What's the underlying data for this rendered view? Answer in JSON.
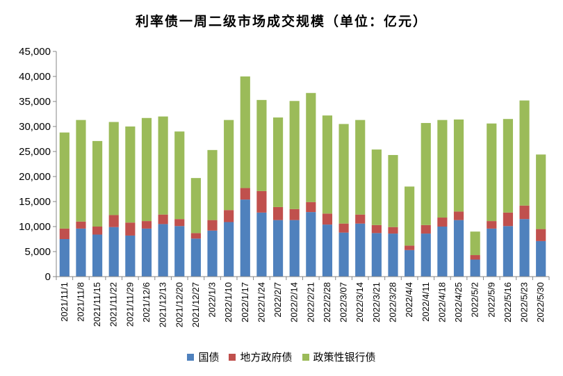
{
  "chart_data": {
    "type": "bar",
    "stacked": true,
    "title": "利率债一周二级市场成交规模（单位：亿元）",
    "categories": [
      "2021/11/1",
      "2021/11/8",
      "2021/11/15",
      "2021/11/22",
      "2021/11/29",
      "2021/12/6",
      "2021/12/13",
      "2021/12/20",
      "2021/12/27",
      "2022/1/3",
      "2022/1/10",
      "2022/1/17",
      "2022/1/24",
      "2022/2/7",
      "2022/2/14",
      "2022/2/21",
      "2022/2/28",
      "2022/3/07",
      "2022/3/14",
      "2022/3/21",
      "2022/3/28",
      "2022/4/4",
      "2022/4/11",
      "2022/4/18",
      "2022/4/25",
      "2022/5/2",
      "2022/5/9",
      "2022/5/16",
      "2022/5/23",
      "2022/5/30"
    ],
    "series": [
      {
        "name": "国债",
        "color": "#4f81bd",
        "values": [
          7500,
          9600,
          8400,
          9900,
          8200,
          9600,
          10500,
          10100,
          7600,
          9200,
          10900,
          15400,
          12800,
          11300,
          11300,
          12900,
          10400,
          8800,
          10600,
          8700,
          8600,
          5300,
          8600,
          10000,
          11300,
          3400,
          9600,
          10100,
          11500,
          7100
        ]
      },
      {
        "name": "地方政府债",
        "color": "#c0504d",
        "values": [
          2100,
          1400,
          1600,
          2400,
          2600,
          1500,
          1900,
          1400,
          1100,
          2100,
          2400,
          2300,
          4300,
          2600,
          2200,
          2000,
          2200,
          1800,
          1800,
          1600,
          1300,
          900,
          1700,
          1800,
          1700,
          900,
          1500,
          2700,
          2700,
          2400
        ]
      },
      {
        "name": "政策性银行债",
        "color": "#9bbb59",
        "values": [
          19200,
          20300,
          17100,
          18600,
          19200,
          20600,
          19600,
          17500,
          11000,
          14000,
          18000,
          22300,
          18200,
          17900,
          21600,
          21800,
          19600,
          19900,
          18900,
          15100,
          14400,
          11800,
          20400,
          19500,
          18400,
          4700,
          19500,
          18700,
          21000,
          14900
        ]
      }
    ],
    "ylim": [
      0,
      45000
    ],
    "yticks": [
      "0",
      "5,000",
      "10,000",
      "15,000",
      "20,000",
      "25,000",
      "30,000",
      "35,000",
      "40,000",
      "45,000"
    ],
    "legend_position": "bottom",
    "grid": false
  }
}
